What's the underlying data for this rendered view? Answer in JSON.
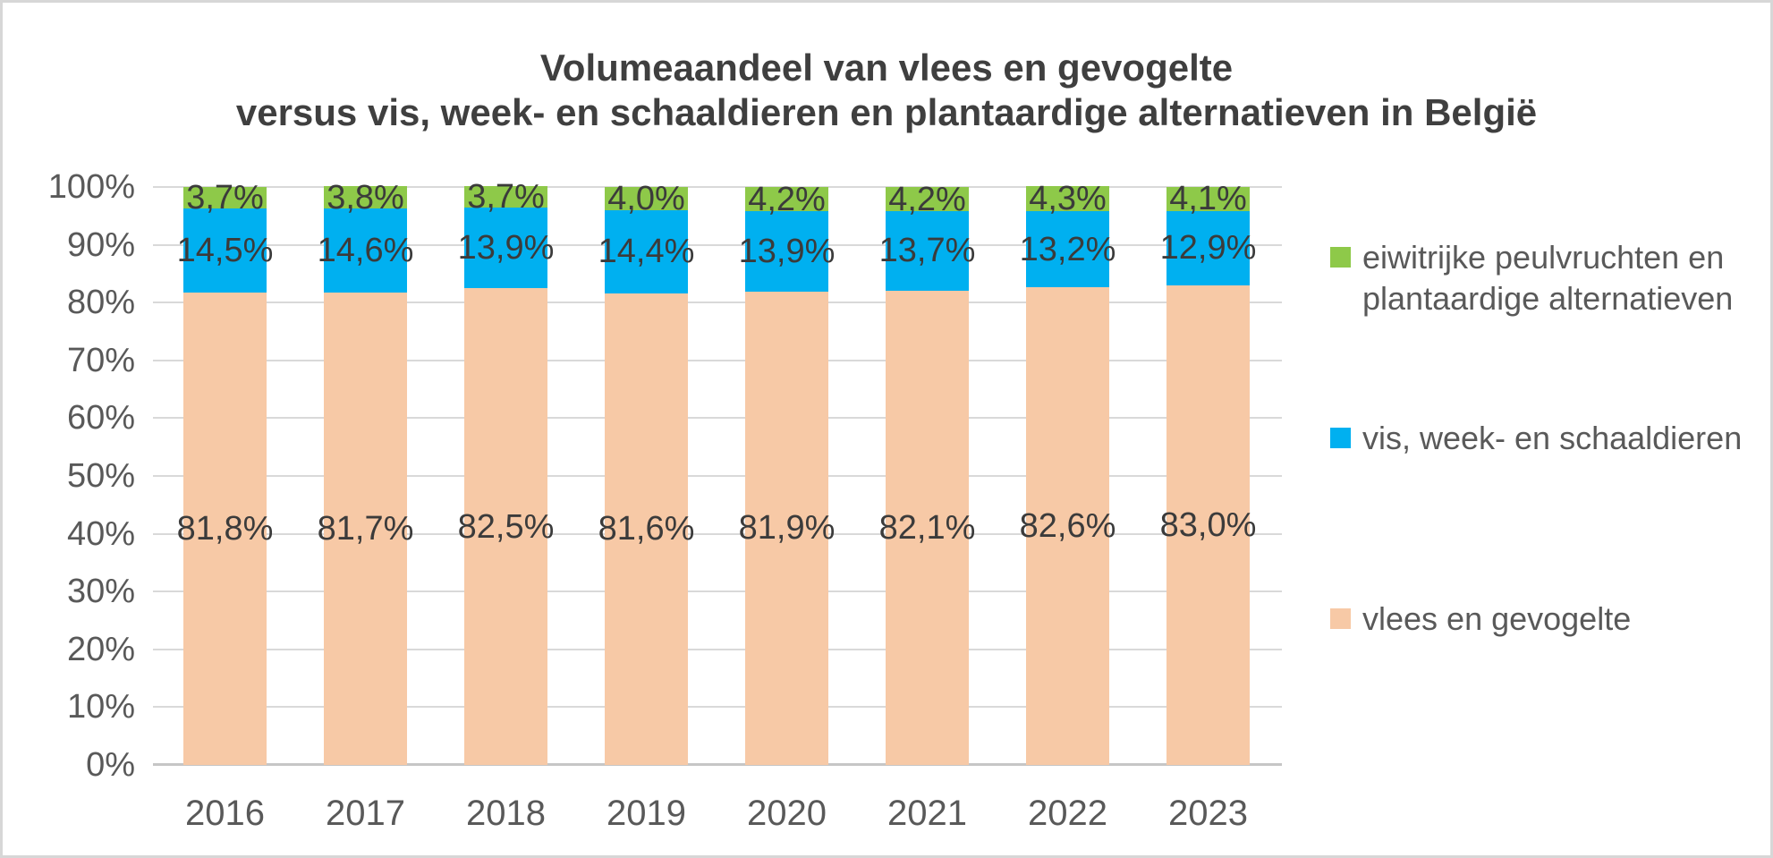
{
  "title": {
    "line1": "Volumeaandeel van vlees en gevogelte",
    "line2": "versus vis, week- en schaaldieren en plantaardige alternatieven in België"
  },
  "colors": {
    "meat": "#f7c9a6",
    "fish": "#00b0f0",
    "plant": "#8ec949",
    "gridline": "#d9d9d9",
    "axis_line": "#c6c6c6",
    "title_text": "#3f3f3f",
    "axis_text": "#595959",
    "label_text": "#3b3b3b"
  },
  "chart_data": {
    "type": "bar",
    "stacked": true,
    "percent_stacked": true,
    "title": "Volumeaandeel van vlees en gevogelte versus vis, week- en schaaldieren en plantaardige alternatieven in België",
    "categories": [
      "2016",
      "2017",
      "2018",
      "2019",
      "2020",
      "2021",
      "2022",
      "2023"
    ],
    "series": [
      {
        "name": "vlees en gevogelte",
        "color": "#f7c9a6",
        "values": [
          81.8,
          81.7,
          82.5,
          81.6,
          81.9,
          82.1,
          82.6,
          83.0
        ],
        "labels": [
          "81,8%",
          "81,7%",
          "82,5%",
          "81,6%",
          "81,9%",
          "82,1%",
          "82,6%",
          "83,0%"
        ]
      },
      {
        "name": "vis, week- en schaaldieren",
        "color": "#00b0f0",
        "values": [
          14.5,
          14.6,
          13.9,
          14.4,
          13.9,
          13.7,
          13.2,
          12.9
        ],
        "labels": [
          "14,5%",
          "14,6%",
          "13,9%",
          "14,4%",
          "13,9%",
          "13,7%",
          "13,2%",
          "12,9%"
        ]
      },
      {
        "name": "eiwitrijke peulvruchten en plantaardige alternatieven",
        "color": "#8ec949",
        "values": [
          3.7,
          3.8,
          3.7,
          4.0,
          4.2,
          4.2,
          4.3,
          4.1
        ],
        "labels": [
          "3,7%",
          "3,8%",
          "3,7%",
          "4,0%",
          "4,2%",
          "4,2%",
          "4,3%",
          "4,1%"
        ]
      }
    ],
    "xlabel": "",
    "ylabel": "",
    "ylim": [
      0,
      100
    ],
    "y_ticks": [
      "0%",
      "10%",
      "20%",
      "30%",
      "40%",
      "50%",
      "60%",
      "70%",
      "80%",
      "90%",
      "100%"
    ],
    "grid": true,
    "legend_position": "right"
  },
  "legend": {
    "items": [
      {
        "label": "eiwitrijke peulvruchten en plantaardige alternatieven",
        "color": "#8ec949"
      },
      {
        "label": "vis, week- en schaaldieren",
        "color": "#00b0f0"
      },
      {
        "label": "vlees en gevogelte",
        "color": "#f7c9a6"
      }
    ]
  }
}
